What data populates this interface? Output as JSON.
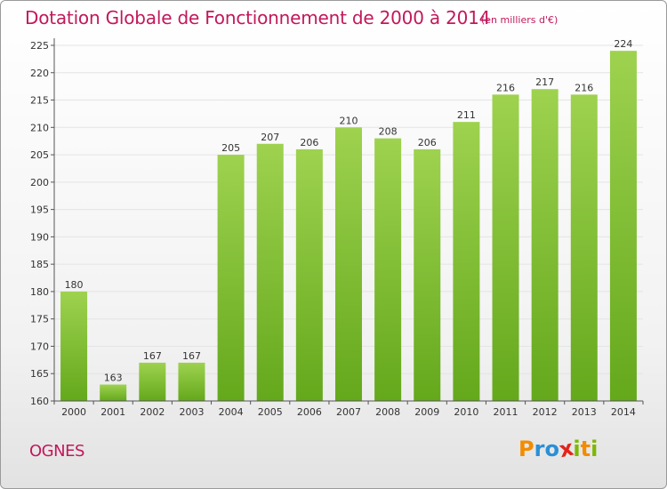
{
  "header": {
    "title": "Dotation Globale de Fonctionnement de 2000 à 2014",
    "unit_note": "(en milliers d'€)"
  },
  "footer": {
    "town": "OGNES",
    "logo_letters": [
      "P",
      "r",
      "o",
      "x",
      "i",
      "t",
      "i"
    ],
    "logo_colors": [
      "#f28c00",
      "#2a8fd6",
      "#2a8fd6",
      "#e2231a",
      "#7cb800",
      "#f28c00",
      "#7cb800"
    ]
  },
  "chart_data": {
    "type": "bar",
    "title": "Dotation Globale de Fonctionnement de 2000 à 2014",
    "subtitle": "(en milliers d'€)",
    "xlabel": "",
    "ylabel": "",
    "categories": [
      "2000",
      "2001",
      "2002",
      "2003",
      "2004",
      "2005",
      "2006",
      "2007",
      "2008",
      "2009",
      "2010",
      "2011",
      "2012",
      "2013",
      "2014"
    ],
    "values": [
      180,
      163,
      167,
      167,
      205,
      207,
      206,
      210,
      208,
      206,
      211,
      216,
      217,
      216,
      224
    ],
    "ylim": [
      160,
      225
    ],
    "yticks": [
      160,
      165,
      170,
      175,
      180,
      185,
      190,
      195,
      200,
      205,
      210,
      215,
      220,
      225
    ],
    "grid": true,
    "legend": "none",
    "colors": {
      "bar_top": "#9ed24f",
      "bar_bottom": "#64a81c",
      "grid": "#e4e4e4",
      "axis": "#555555",
      "title": "#c2185b"
    }
  }
}
